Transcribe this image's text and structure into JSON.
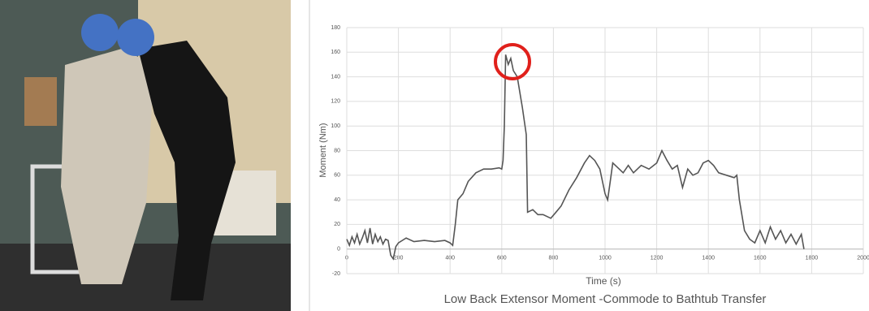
{
  "chart_data": {
    "type": "line",
    "title": "Low Back Extensor Moment -Commode to Bathtub Transfer",
    "x_label": "Time (s)",
    "y_label": "Moment (Nm)",
    "xlim": [
      0,
      2000
    ],
    "xticks": [
      0,
      200,
      400,
      600,
      800,
      1000,
      1200,
      1400,
      1600,
      1800,
      2000
    ],
    "ylim": [
      -20,
      180
    ],
    "yticks": [
      -20,
      0,
      20,
      40,
      60,
      80,
      100,
      120,
      140,
      160,
      180
    ],
    "grid": true,
    "series": [
      {
        "color": "#555555",
        "x": [
          0,
          10,
          20,
          30,
          40,
          50,
          60,
          70,
          80,
          90,
          100,
          110,
          120,
          130,
          140,
          150,
          160,
          170,
          180,
          190,
          200,
          230,
          260,
          300,
          340,
          380,
          400,
          410,
          420,
          430,
          450,
          470,
          500,
          530,
          560,
          590,
          600,
          605,
          610,
          615,
          625,
          635,
          645,
          660,
          680,
          695,
          700,
          720,
          740,
          760,
          790,
          810,
          830,
          860,
          890,
          920,
          940,
          960,
          980,
          1000,
          1010,
          1020,
          1030,
          1050,
          1070,
          1090,
          1110,
          1140,
          1170,
          1200,
          1220,
          1240,
          1260,
          1280,
          1300,
          1320,
          1340,
          1360,
          1380,
          1400,
          1420,
          1440,
          1470,
          1500,
          1510,
          1520,
          1540,
          1560,
          1580,
          1600,
          1620,
          1640,
          1660,
          1680,
          1700,
          1720,
          1740,
          1760,
          1770
        ],
        "values": [
          8,
          3,
          10,
          5,
          12,
          4,
          9,
          15,
          5,
          17,
          4,
          12,
          6,
          10,
          4,
          8,
          7,
          -5,
          -8,
          2,
          5,
          9,
          6,
          7,
          6,
          7,
          5,
          3,
          20,
          40,
          45,
          55,
          62,
          65,
          65,
          66,
          65,
          72,
          100,
          158,
          150,
          155,
          145,
          140,
          115,
          93,
          30,
          32,
          28,
          28,
          25,
          30,
          35,
          48,
          58,
          70,
          76,
          72,
          65,
          45,
          40,
          55,
          70,
          66,
          62,
          68,
          62,
          68,
          65,
          70,
          80,
          72,
          65,
          68,
          50,
          65,
          60,
          62,
          70,
          72,
          68,
          62,
          60,
          58,
          60,
          40,
          15,
          8,
          5,
          15,
          5,
          18,
          8,
          15,
          5,
          12,
          4,
          12,
          0
        ]
      }
    ]
  }
}
